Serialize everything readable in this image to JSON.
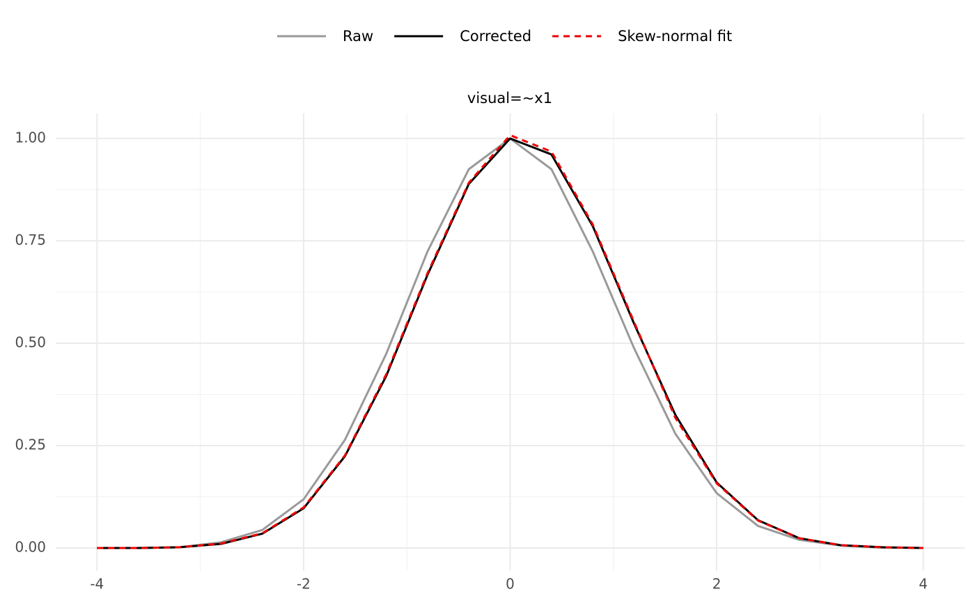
{
  "chart_data": {
    "type": "line",
    "subtitle": "visual=~x1",
    "x": [
      -4,
      -3.6,
      -3.2,
      -2.8,
      -2.4,
      -2,
      -1.6,
      -1.2,
      -0.8,
      -0.4,
      0,
      0.4,
      0.8,
      1.2,
      1.6,
      2,
      2.4,
      2.8,
      3.2,
      3.6,
      4
    ],
    "series": [
      {
        "name": "Raw",
        "color": "#999999",
        "dash": "solid",
        "values": [
          0,
          0,
          0.002,
          0.014,
          0.044,
          0.119,
          0.264,
          0.474,
          0.724,
          0.925,
          1.0,
          0.925,
          0.724,
          0.488,
          0.279,
          0.134,
          0.054,
          0.02,
          0.006,
          0.001,
          0
        ]
      },
      {
        "name": "Corrected",
        "color": "#000000",
        "dash": "solid",
        "values": [
          0,
          0,
          0.002,
          0.01,
          0.035,
          0.097,
          0.224,
          0.42,
          0.667,
          0.889,
          1.0,
          0.961,
          0.786,
          0.548,
          0.325,
          0.16,
          0.068,
          0.024,
          0.007,
          0.002,
          0
        ]
      },
      {
        "name": "Skew-normal fit",
        "color": "#ee0000",
        "dash": "dashed",
        "values": [
          0,
          0,
          0.002,
          0.011,
          0.036,
          0.099,
          0.226,
          0.424,
          0.671,
          0.892,
          1.008,
          0.968,
          0.79,
          0.552,
          0.318,
          0.158,
          0.067,
          0.024,
          0.007,
          0.002,
          0
        ]
      }
    ],
    "xlim": [
      -4.4,
      4.4
    ],
    "xticks": [
      -4,
      -2,
      0,
      2,
      4
    ],
    "ylim": [
      -0.056,
      1.061
    ],
    "yticks": [
      {
        "value": 0,
        "label": "0.00"
      },
      {
        "value": 0.25,
        "label": "0.25"
      },
      {
        "value": 0.5,
        "label": "0.50"
      },
      {
        "value": 0.75,
        "label": "0.75"
      },
      {
        "value": 1,
        "label": "1.00"
      }
    ],
    "grid": true,
    "legend_position": "top"
  }
}
